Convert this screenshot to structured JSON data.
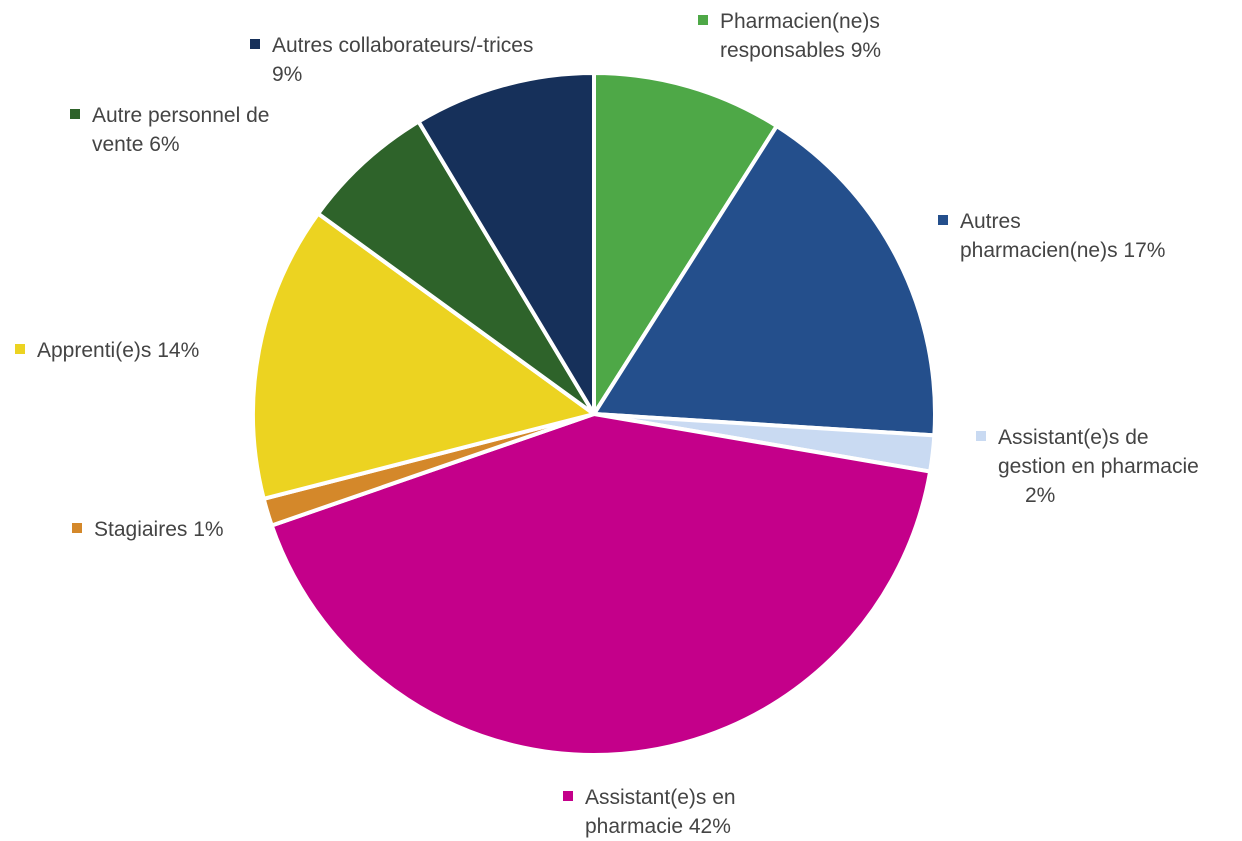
{
  "chart_data": {
    "type": "pie",
    "slices": [
      {
        "name": "Pharmacien(ne)s responsables",
        "value": 9,
        "value_label": "9%",
        "color": "#4ea847",
        "lines": [
          "Pharmacien(ne)s",
          "responsables  9%"
        ]
      },
      {
        "name": "Autres pharmacien(ne)s",
        "value": 17,
        "value_label": "17%",
        "color": "#244f8c",
        "lines": [
          "Autres",
          "pharmacien(ne)s  17%"
        ]
      },
      {
        "name": "Assistant(e)s de gestion en pharmacie",
        "value": 1.7,
        "value_label": "2%",
        "color": "#c9daf2",
        "lines": [
          "Assistant(e)s de",
          "gestion en pharmacie",
          "2%"
        ]
      },
      {
        "name": "Assistant(e)s en pharmacie",
        "value": 42,
        "value_label": "42%",
        "color": "#c4008a",
        "lines": [
          "Assistant(e)s en",
          "pharmacie  42%"
        ]
      },
      {
        "name": "Stagiaires",
        "value": 1.3,
        "value_label": "1%",
        "color": "#d4882a",
        "lines": [
          "Stagiaires 1%"
        ]
      },
      {
        "name": "Apprenti(e)s",
        "value": 14,
        "value_label": "14%",
        "color": "#ecd321",
        "lines": [
          "Apprenti(e)s  14%"
        ]
      },
      {
        "name": "Autre personnel de vente",
        "value": 6.4,
        "value_label": "6%",
        "color": "#2e632a",
        "lines": [
          "Autre personnel de",
          "vente  6%"
        ]
      },
      {
        "name": "Autres collaborateurs/-trices",
        "value": 8.6,
        "value_label": "9%",
        "color": "#16305a",
        "lines": [
          "Autres collaborateurs/-trices",
          "9%"
        ]
      }
    ]
  }
}
